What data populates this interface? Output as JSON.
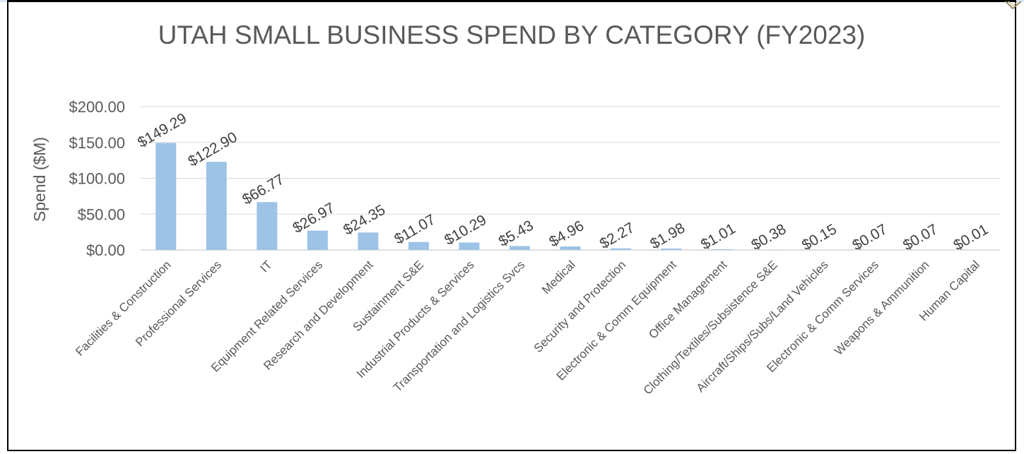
{
  "chart_data": {
    "type": "bar",
    "title": "UTAH SMALL BUSINESS SPEND BY CATEGORY (FY2023)",
    "xlabel": "",
    "ylabel": "Spend ($M)",
    "ylim": [
      0,
      200
    ],
    "yticks": [
      "$0.00",
      "$50.00",
      "$100.00",
      "$150.00",
      "$200.00"
    ],
    "ytick_values": [
      0,
      50,
      100,
      150,
      200
    ],
    "grid": true,
    "legend": "none",
    "bar_color": "#9dc3e6",
    "categories": [
      "Facilities & Construction",
      "Professional Services",
      "IT",
      "Equipment Related Services",
      "Research and Development",
      "Sustainment S&E",
      "Industrial Products & Services",
      "Transportation and Logistics Svcs",
      "Medical",
      "Security and Protection",
      "Electronic & Comm Equipment",
      "Office Management",
      "Clothing/Textiles/Subsistence S&E",
      "Aircraft/Ships/Subs/Land Vehicles",
      "Electronic & Comm Services",
      "Weapons & Ammunition",
      "Human Capital"
    ],
    "values": [
      149.29,
      122.9,
      66.77,
      26.97,
      24.35,
      11.07,
      10.29,
      5.43,
      4.96,
      2.27,
      1.98,
      1.01,
      0.38,
      0.15,
      0.07,
      0.07,
      0.01
    ],
    "data_labels": [
      "$149.29",
      "$122.90",
      "$66.77",
      "$26.97",
      "$24.35",
      "$11.07",
      "$10.29",
      "$5.43",
      "$4.96",
      "$2.27",
      "$1.98",
      "$1.01",
      "$0.38",
      "$0.15",
      "$0.07",
      "$0.07",
      "$0.01"
    ]
  }
}
